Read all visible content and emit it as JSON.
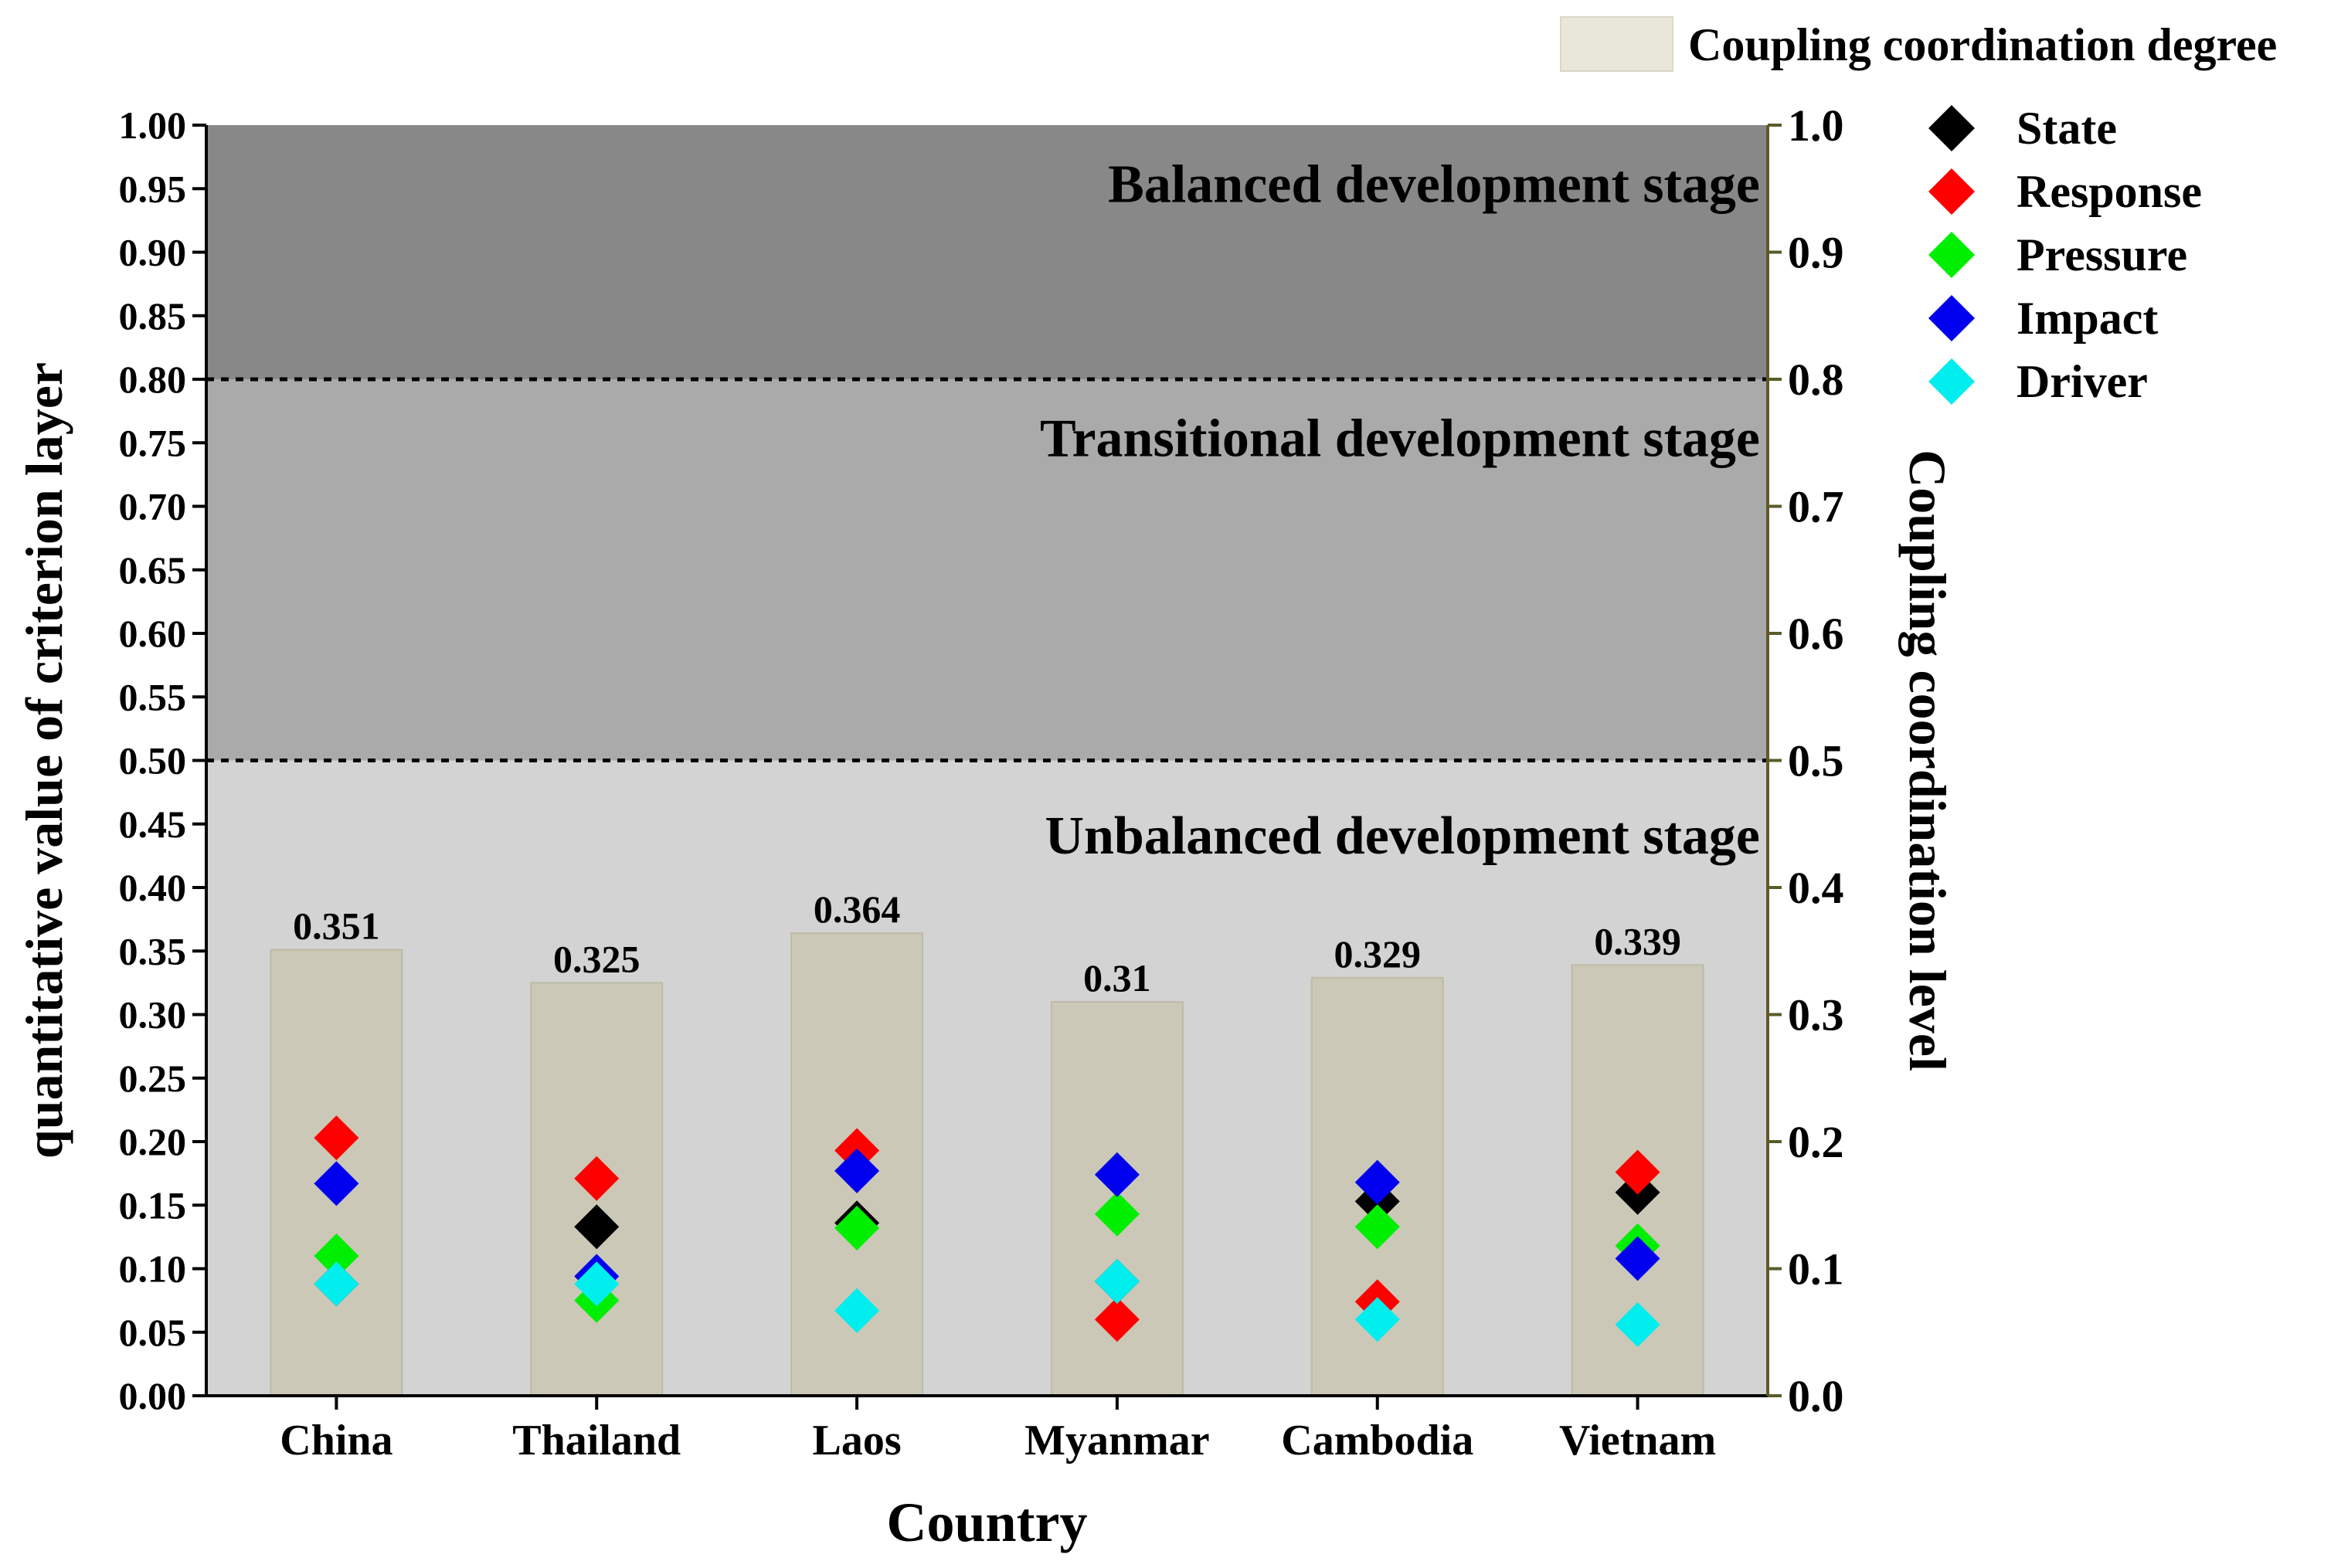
{
  "chart_data": {
    "type": "bar",
    "title": "",
    "categories": [
      "China",
      "Thailand",
      "Laos",
      "Myanmar",
      "Cambodia",
      "Vietnam"
    ],
    "xlabel": "Country",
    "ylabel": "quantitative value of criterion layer",
    "ylabel_right": "Coupling  coordination level",
    "ylim": [
      0,
      1.0
    ],
    "y_ticks": [
      "0.00",
      "0.05",
      "0.10",
      "0.15",
      "0.20",
      "0.25",
      "0.30",
      "0.35",
      "0.40",
      "0.45",
      "0.50",
      "0.55",
      "0.60",
      "0.65",
      "0.70",
      "0.75",
      "0.80",
      "0.85",
      "0.90",
      "0.95",
      "1.00"
    ],
    "y_ticks_right": [
      "0.0",
      "0.1",
      "0.2",
      "0.3",
      "0.4",
      "0.5",
      "0.6",
      "0.7",
      "0.8",
      "0.9",
      "1.0"
    ],
    "bar_series": {
      "name": "Coupling  coordination degree",
      "values": [
        0.351,
        0.325,
        0.364,
        0.31,
        0.329,
        0.339
      ],
      "labels": [
        "0.351",
        "0.325",
        "0.364",
        "0.31",
        "0.329",
        "0.339"
      ],
      "color": "#cbc8b7"
    },
    "marker_series": [
      {
        "name": "State",
        "color": "#000000",
        "values": [
          0.088,
          0.133,
          0.136,
          0.09,
          0.153,
          0.16
        ]
      },
      {
        "name": "Response",
        "color": "#ff0000",
        "values": [
          0.203,
          0.171,
          0.193,
          0.06,
          0.074,
          0.176
        ]
      },
      {
        "name": "Pressure",
        "color": "#00ee00",
        "values": [
          0.11,
          0.075,
          0.132,
          0.143,
          0.133,
          0.118
        ]
      },
      {
        "name": "Impact",
        "color": "#0000ee",
        "values": [
          0.167,
          0.094,
          0.177,
          0.174,
          0.168,
          0.108
        ]
      },
      {
        "name": "Driver",
        "color": "#00eeee",
        "values": [
          0.088,
          0.088,
          0.067,
          0.09,
          0.06,
          0.056
        ]
      }
    ],
    "stages": [
      {
        "name": "Unbalanced development stage",
        "from": 0.0,
        "to": 0.5,
        "color": "#d3d3d3"
      },
      {
        "name": "Transitional development stage",
        "from": 0.5,
        "to": 0.8,
        "color": "#aaaaaa"
      },
      {
        "name": "Balanced development stage",
        "from": 0.8,
        "to": 1.0,
        "color": "#888888"
      }
    ],
    "stage_boundaries": [
      0.5,
      0.8
    ],
    "legend_position": "top-right"
  }
}
